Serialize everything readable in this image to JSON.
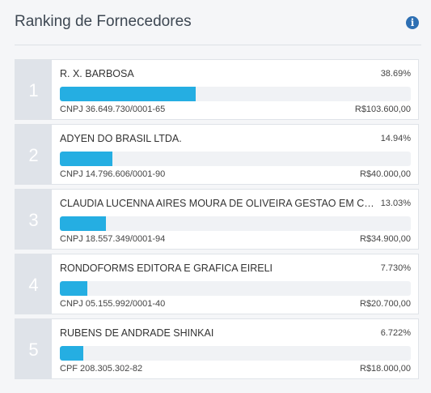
{
  "header": {
    "title": "Ranking de Fornecedores",
    "info_icon": "info-icon"
  },
  "colors": {
    "bar_fill": "#25aee2",
    "rank_bg": "#dfe3e9",
    "info_icon": "#2d6fb3"
  },
  "suppliers": [
    {
      "rank": "1",
      "name": "R. X. BARBOSA",
      "percent_label": "38.69%",
      "share": 0.3869,
      "doc": "CNPJ 36.649.730/0001-65",
      "value": "R$103.600,00"
    },
    {
      "rank": "2",
      "name": "ADYEN DO BRASIL LTDA.",
      "percent_label": "14.94%",
      "share": 0.1494,
      "doc": "CNPJ 14.796.606/0001-90",
      "value": "R$40.000,00"
    },
    {
      "rank": "3",
      "name": "CLAUDIA LUCENNA AIRES MOURA DE OLIVEIRA GESTAO EM COM...",
      "percent_label": "13.03%",
      "share": 0.1303,
      "doc": "CNPJ 18.557.349/0001-94",
      "value": "R$34.900,00"
    },
    {
      "rank": "4",
      "name": "RONDOFORMS EDITORA E GRAFICA EIRELI",
      "percent_label": "7.730%",
      "share": 0.0773,
      "doc": "CNPJ 05.155.992/0001-40",
      "value": "R$20.700,00"
    },
    {
      "rank": "5",
      "name": "RUBENS DE ANDRADE SHINKAI",
      "percent_label": "6.722%",
      "share": 0.0672,
      "doc": "CPF 208.305.302-82",
      "value": "R$18.000,00"
    }
  ]
}
